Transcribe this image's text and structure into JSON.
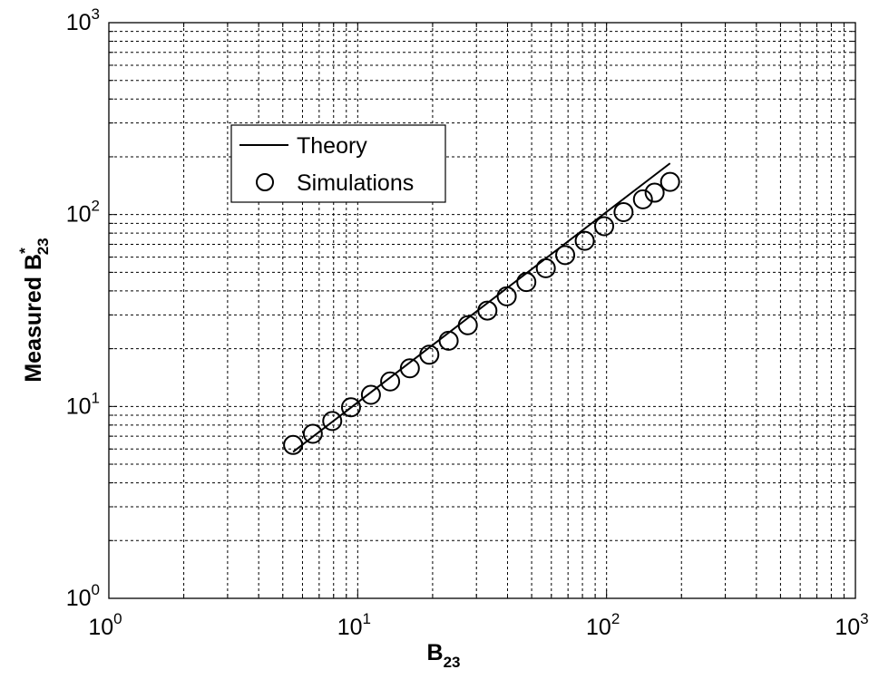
{
  "chart_data": {
    "type": "line",
    "xscale": "log",
    "yscale": "log",
    "xlim": [
      1,
      1000
    ],
    "ylim": [
      1,
      1000
    ],
    "grid": true,
    "xlabel": {
      "base": "B",
      "sub": "23"
    },
    "ylabel": {
      "prefix": "Measured ",
      "base": "B",
      "sup": "*",
      "sub": "23"
    },
    "x_ticks": [
      {
        "base": "10",
        "exp": "0",
        "value": 1
      },
      {
        "base": "10",
        "exp": "1",
        "value": 10
      },
      {
        "base": "10",
        "exp": "2",
        "value": 100
      },
      {
        "base": "10",
        "exp": "3",
        "value": 1000
      }
    ],
    "y_ticks": [
      {
        "base": "10",
        "exp": "0",
        "value": 1
      },
      {
        "base": "10",
        "exp": "1",
        "value": 10
      },
      {
        "base": "10",
        "exp": "2",
        "value": 100
      },
      {
        "base": "10",
        "exp": "3",
        "value": 1000
      }
    ],
    "legend_position": "upper-left",
    "series": [
      {
        "name": "Theory",
        "style": "line",
        "color": "#000000",
        "x": [
          5.5,
          180
        ],
        "y": [
          5.8,
          185
        ]
      },
      {
        "name": "Simulations",
        "style": "open-circle",
        "color": "#000000",
        "x": [
          5.5,
          6.6,
          7.9,
          9.4,
          11.3,
          13.5,
          16.2,
          19.4,
          23.2,
          27.7,
          33.2,
          39.7,
          47.6,
          57.0,
          68.2,
          81.7,
          97.8,
          117,
          140,
          156,
          180
        ],
        "y": [
          6.3,
          7.2,
          8.4,
          9.9,
          11.5,
          13.5,
          15.8,
          18.6,
          22.0,
          26.5,
          31.6,
          37.5,
          44.5,
          52.5,
          61.5,
          73.0,
          87.0,
          103,
          120,
          130,
          148
        ]
      }
    ]
  }
}
